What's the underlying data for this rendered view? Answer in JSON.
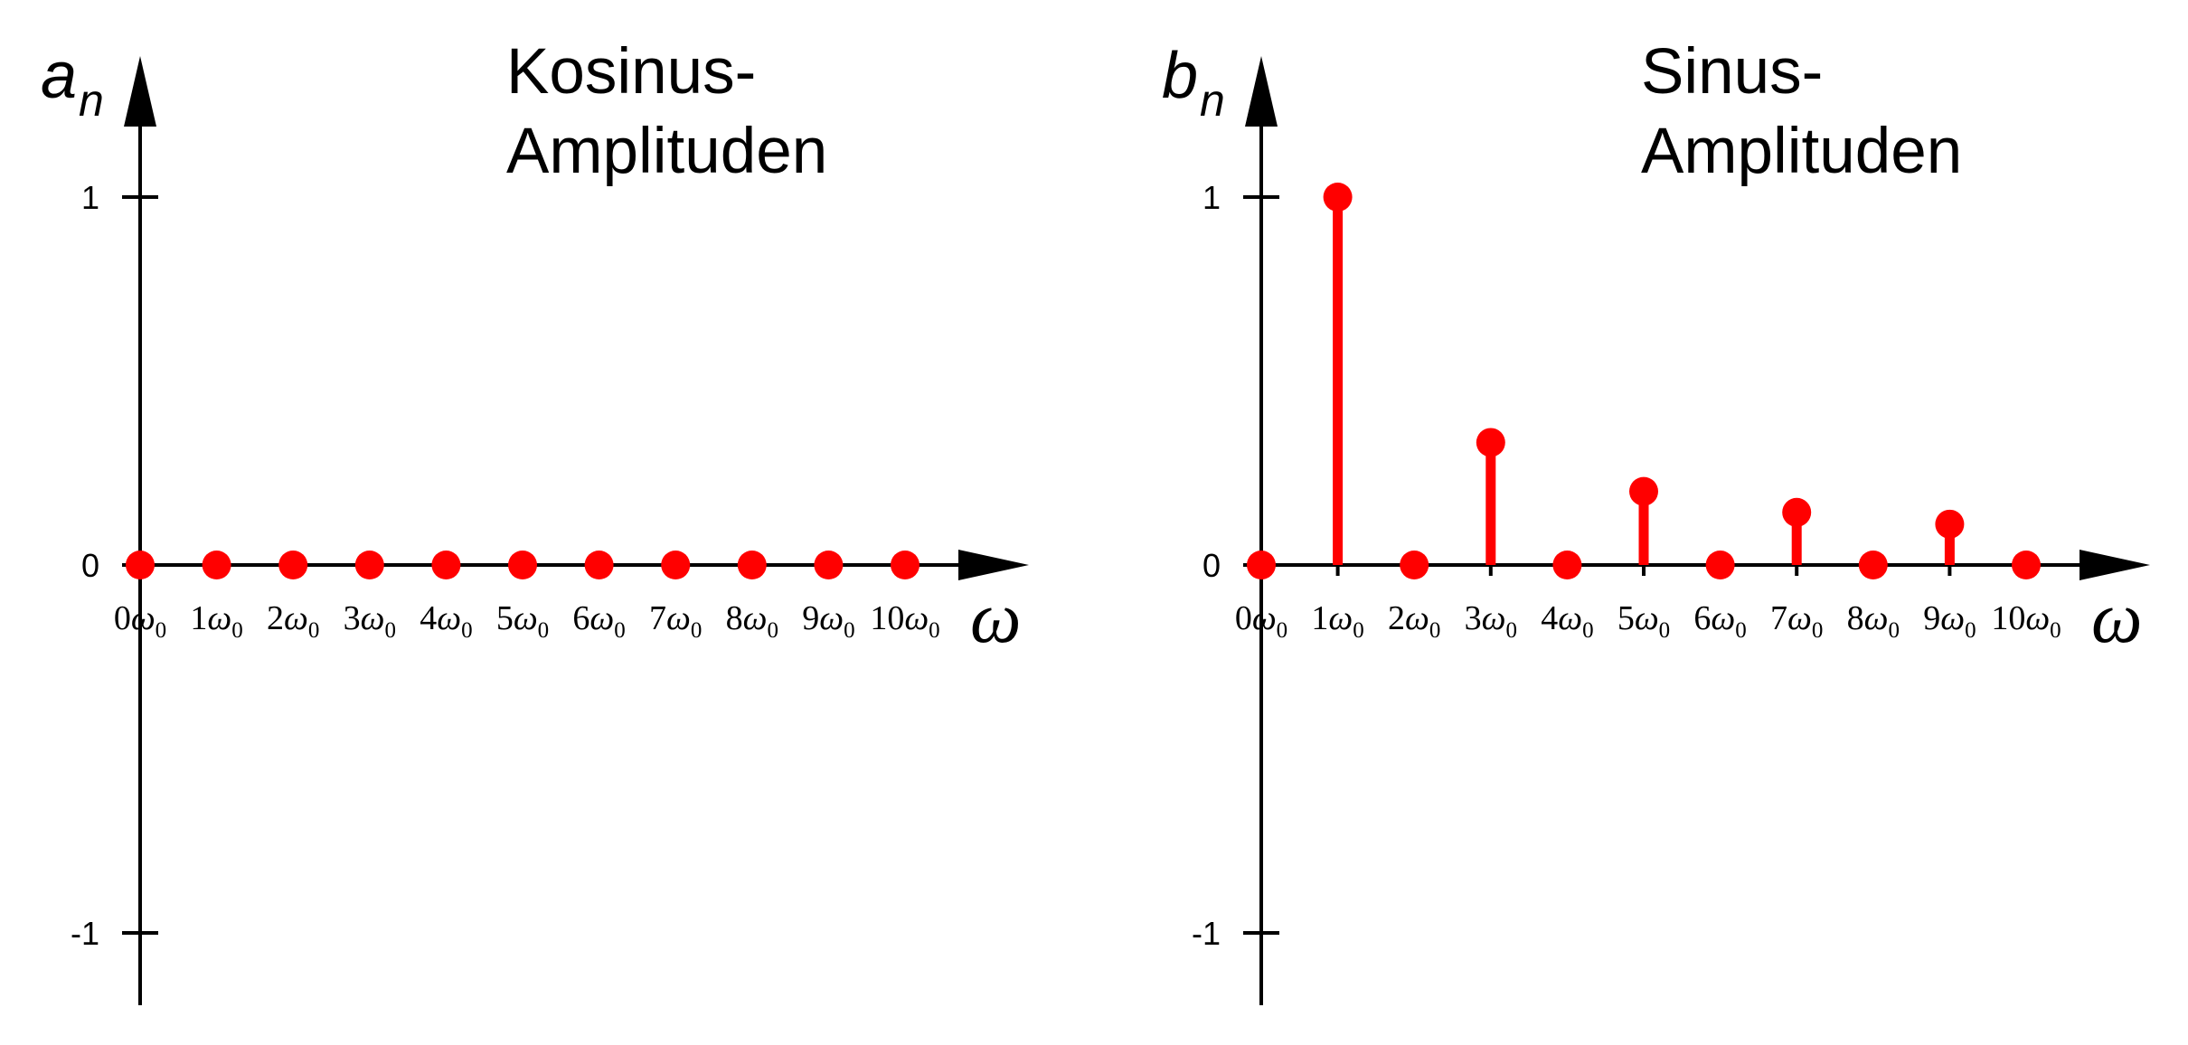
{
  "chart_data": [
    {
      "type": "stem",
      "title_lines": [
        "Kosinus-",
        "Amplituden"
      ],
      "ylabel_main": "a",
      "ylabel_sub": "n",
      "xlabel": "ω",
      "ylim": [
        -1.2,
        1.25
      ],
      "yticks": [
        1,
        0,
        -1
      ],
      "ytick_labels": [
        "1",
        "0",
        "-1"
      ],
      "x": [
        0,
        1,
        2,
        3,
        4,
        5,
        6,
        7,
        8,
        9,
        10
      ],
      "xtick_nums": [
        "0",
        "1",
        "2",
        "3",
        "4",
        "5",
        "6",
        "7",
        "8",
        "9",
        "10"
      ],
      "xtick_omega": "ω",
      "xtick_sub": "0",
      "values": [
        0,
        0,
        0,
        0,
        0,
        0,
        0,
        0,
        0,
        0,
        0
      ],
      "color": "#ff0000",
      "grid": false
    },
    {
      "type": "stem",
      "title_lines": [
        "Sinus-",
        "Amplituden"
      ],
      "ylabel_main": "b",
      "ylabel_sub": "n",
      "xlabel": "ω",
      "ylim": [
        -1.2,
        1.25
      ],
      "yticks": [
        1,
        0,
        -1
      ],
      "ytick_labels": [
        "1",
        "0",
        "-1"
      ],
      "x": [
        0,
        1,
        2,
        3,
        4,
        5,
        6,
        7,
        8,
        9,
        10
      ],
      "xtick_nums": [
        "0",
        "1",
        "2",
        "3",
        "4",
        "5",
        "6",
        "7",
        "8",
        "9",
        "10"
      ],
      "xtick_omega": "ω",
      "xtick_sub": "0",
      "values": [
        0,
        1,
        0,
        0.333,
        0,
        0.2,
        0,
        0.143,
        0,
        0.111,
        0
      ],
      "color": "#ff0000",
      "grid": false
    }
  ]
}
